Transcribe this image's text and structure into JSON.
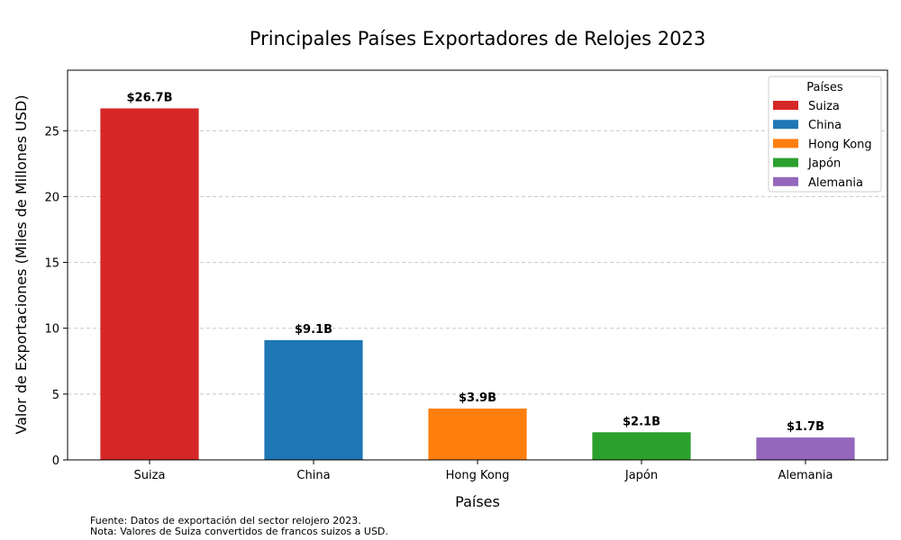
{
  "chart_data": {
    "type": "bar",
    "title": "Principales Países Exportadores de Relojes 2023",
    "xlabel": "Países",
    "ylabel": "Valor de Exportaciones (Miles de Millones USD)",
    "categories": [
      "Suiza",
      "China",
      "Hong Kong",
      "Japón",
      "Alemania"
    ],
    "values": [
      26.7,
      9.1,
      3.9,
      2.1,
      1.7
    ],
    "data_labels": [
      "$26.7B",
      "$9.1B",
      "$3.9B",
      "$2.1B",
      "$1.7B"
    ],
    "colors": [
      "#d62728",
      "#1f77b4",
      "#ff7f0e",
      "#2ca02c",
      "#9467bd"
    ],
    "ylim": [
      0,
      29.6
    ],
    "yticks": [
      0,
      5,
      10,
      15,
      20,
      25
    ],
    "grid": true,
    "legend": {
      "title": "Países",
      "position": "top-right"
    }
  },
  "footnotes": {
    "source": "Fuente: Datos de exportación del sector relojero 2023.",
    "note": "Nota: Valores de Suiza convertidos de francos suizos a USD."
  }
}
